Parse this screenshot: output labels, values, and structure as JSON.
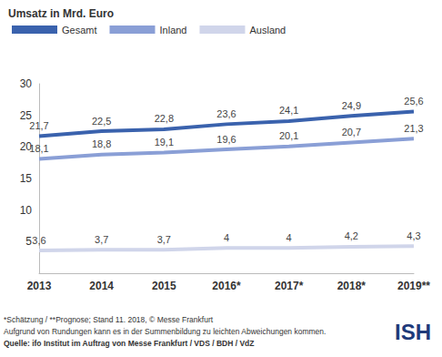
{
  "chart_data": {
    "type": "line",
    "title": "Umsatz in Mrd. Euro",
    "categories": [
      "2013",
      "2014",
      "2015",
      "2016*",
      "2017*",
      "2018*",
      "2019**"
    ],
    "series": [
      {
        "name": "Gesamt",
        "color": "#3a62ad",
        "values": [
          21.7,
          22.5,
          22.8,
          23.6,
          24.1,
          24.9,
          25.6
        ],
        "value_labels": [
          "21,7",
          "22,5",
          "22,8",
          "23,6",
          "24,1",
          "24,9",
          "25,6"
        ]
      },
      {
        "name": "Inland",
        "color": "#8a9fd6",
        "values": [
          18.1,
          18.8,
          19.1,
          19.6,
          20.1,
          20.7,
          21.3
        ],
        "value_labels": [
          "18,1",
          "18,8",
          "19,1",
          "19,6",
          "20,1",
          "20,7",
          "21,3"
        ]
      },
      {
        "name": "Ausland",
        "color": "#d0d5ea",
        "values": [
          3.6,
          3.7,
          3.7,
          4,
          4,
          4.2,
          4.3
        ],
        "value_labels": [
          "3,6",
          "3,7",
          "3,7",
          "4",
          "4",
          "4,2",
          "4,3"
        ]
      }
    ],
    "ylim": [
      0,
      30
    ],
    "yticks": [
      5,
      10,
      15,
      20,
      25,
      30
    ],
    "grid": false,
    "legend": "top-left",
    "data_labels": true,
    "notes": [
      "*Schätzung / **Prognose; Stand 11. 2018, © Messe Frankfurt",
      "Aufgrund von Rundungen kann es in der Summenbildung zu leichten Abweichungen kommen.",
      "Quelle: ifo Institut im Auftrag von Messe Frankfurt / VDS / BDH / VdZ"
    ],
    "logo": "ISH"
  }
}
